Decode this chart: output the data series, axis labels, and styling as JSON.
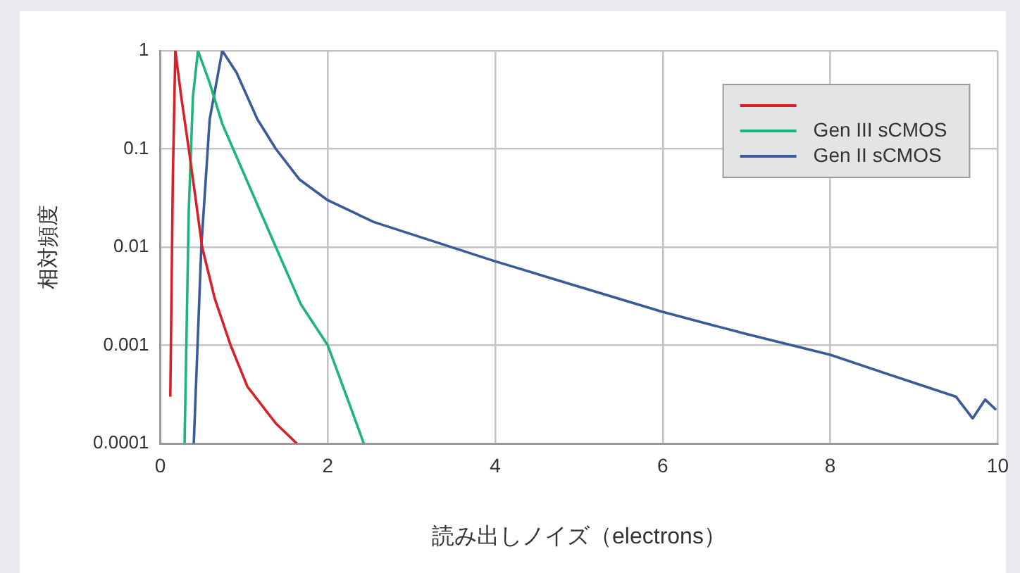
{
  "chart_data": {
    "type": "line",
    "xlabel": "読み出しノイズ（electrons）",
    "ylabel": "相対頻度",
    "xlim": [
      0,
      10
    ],
    "xticks": [
      0,
      2,
      4,
      6,
      8,
      10
    ],
    "ylim": [
      0.0001,
      1
    ],
    "yticks": [
      0.0001,
      0.001,
      0.01,
      0.1,
      1
    ],
    "log": "y",
    "grid": true,
    "legend": "top right",
    "marker": "none",
    "line_style": "solid",
    "series": [
      {
        "color": "#d7202a",
        "x": [
          0.12,
          0.15,
          0.18,
          0.25,
          0.34,
          0.42,
          0.5,
          0.65,
          0.84,
          1.04,
          1.38,
          1.63
        ],
        "values": [
          0.0003,
          0.05,
          1,
          0.34,
          0.1,
          0.032,
          0.01,
          0.003,
          0.001,
          0.00038,
          0.00016,
          0.0001
        ]
      },
      {
        "name": "Gen III sCMOS",
        "color": "#1fb57a",
        "x": [
          0.29,
          0.34,
          0.39,
          0.45,
          0.59,
          0.74,
          0.87,
          1.38,
          1.68,
          2.0,
          2.26,
          2.43
        ],
        "values": [
          0.0001,
          0.023,
          0.34,
          1,
          0.47,
          0.18,
          0.1,
          0.01,
          0.0026,
          0.001,
          0.00025,
          0.0001
        ]
      },
      {
        "name": "Gen II sCMOS",
        "color": "#3a5a9a",
        "x": [
          0.4,
          0.49,
          0.59,
          0.74,
          0.91,
          1.16,
          1.38,
          1.66,
          2.0,
          2.55,
          3.99,
          5.02,
          5.99,
          7.0,
          8.0,
          8.98,
          9.5,
          9.7,
          9.85,
          9.98
        ],
        "values": [
          0.0001,
          0.01,
          0.2,
          1,
          0.6,
          0.2,
          0.1,
          0.049,
          0.03,
          0.018,
          0.0072,
          0.0039,
          0.0022,
          0.0013,
          0.0008,
          0.00042,
          0.0003,
          0.00018,
          0.00028,
          0.00022
        ]
      }
    ]
  }
}
